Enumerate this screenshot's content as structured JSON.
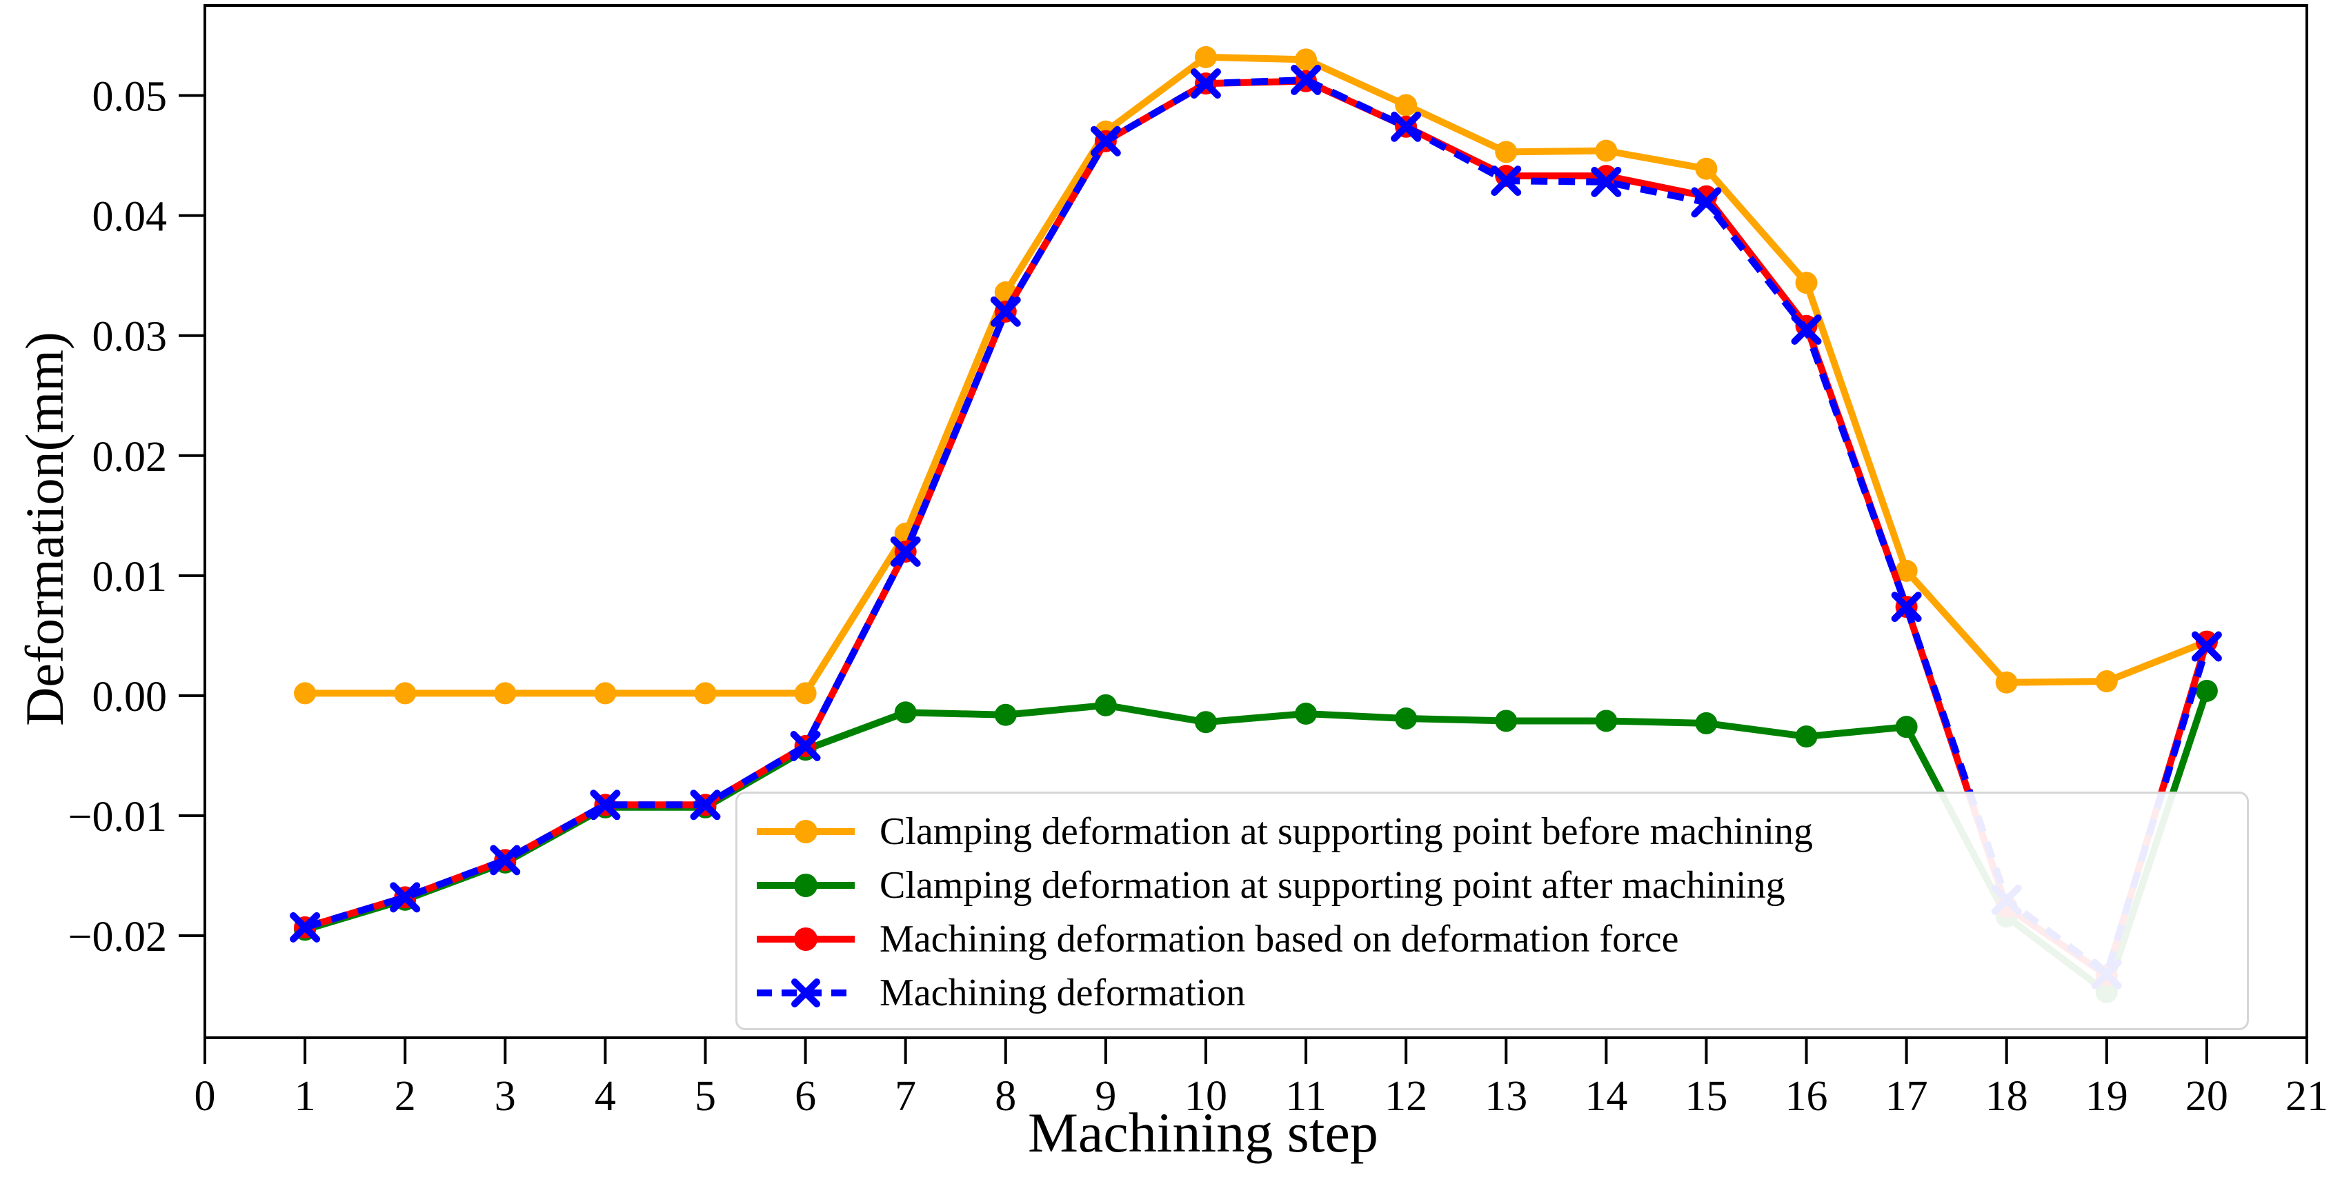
{
  "chart_data": {
    "type": "line",
    "title": "",
    "xlabel": "Machining step",
    "ylabel": "Deformation(mm)",
    "xlim": [
      0,
      21
    ],
    "ylim": [
      -0.0285,
      0.0575
    ],
    "grid": false,
    "legend_position": "lower center",
    "x_tick_labels": [
      "0",
      "1",
      "2",
      "3",
      "4",
      "5",
      "6",
      "7",
      "8",
      "9",
      "10",
      "11",
      "12",
      "13",
      "14",
      "15",
      "16",
      "17",
      "18",
      "19",
      "20",
      "21"
    ],
    "x_tick_values": [
      0,
      1,
      2,
      3,
      4,
      5,
      6,
      7,
      8,
      9,
      10,
      11,
      12,
      13,
      14,
      15,
      16,
      17,
      18,
      19,
      20,
      21
    ],
    "y_tick_labels": [
      "−0.02",
      "−0.01",
      "0.00",
      "0.01",
      "0.02",
      "0.03",
      "0.04",
      "0.05"
    ],
    "y_tick_values": [
      -0.02,
      -0.01,
      0.0,
      0.01,
      0.02,
      0.03,
      0.04,
      0.05
    ],
    "x": [
      1,
      2,
      3,
      4,
      5,
      6,
      7,
      8,
      9,
      10,
      11,
      12,
      13,
      14,
      15,
      16,
      17,
      18,
      19,
      20
    ],
    "series": [
      {
        "name": "Clamping deformation at supporting point before machining",
        "color": "#FFA500",
        "marker": "circle",
        "linestyle": "solid",
        "values": [
          0.0002,
          0.0002,
          0.0002,
          0.0002,
          0.0002,
          0.0002,
          0.0135,
          0.0336,
          0.047,
          0.0532,
          0.053,
          0.0492,
          0.0453,
          0.0454,
          0.0439,
          0.0344,
          0.0104,
          0.0011,
          0.0012,
          0.0045
        ]
      },
      {
        "name": "Clamping deformation at supporting point after machining",
        "color": "#008000",
        "marker": "circle",
        "linestyle": "solid",
        "values": [
          -0.0195,
          -0.017,
          -0.0139,
          -0.0093,
          -0.0093,
          -0.0045,
          -0.0014,
          -0.0016,
          -0.0008,
          -0.0022,
          -0.0015,
          -0.0019,
          -0.0021,
          -0.0021,
          -0.0023,
          -0.0034,
          -0.0026,
          -0.0184,
          -0.0247,
          0.0004
        ]
      },
      {
        "name": "Machining deformation based on deformation force",
        "color": "#FF0000",
        "marker": "circle",
        "linestyle": "solid",
        "values": [
          -0.0193,
          -0.0168,
          -0.0137,
          -0.0091,
          -0.0091,
          -0.0042,
          0.012,
          0.032,
          0.0462,
          0.051,
          0.0512,
          0.0474,
          0.0433,
          0.0433,
          0.0416,
          0.0308,
          0.0074,
          -0.0176,
          -0.0233,
          0.0045
        ]
      },
      {
        "name": "Machining deformation",
        "color": "#0000FF",
        "marker": "x",
        "linestyle": "dashed",
        "values": [
          -0.0193,
          -0.0168,
          -0.0137,
          -0.0091,
          -0.0091,
          -0.0042,
          0.012,
          0.032,
          0.0462,
          0.051,
          0.0513,
          0.0474,
          0.0429,
          0.0428,
          0.0411,
          0.0305,
          0.0074,
          -0.017,
          -0.0232,
          0.0041
        ]
      }
    ]
  }
}
